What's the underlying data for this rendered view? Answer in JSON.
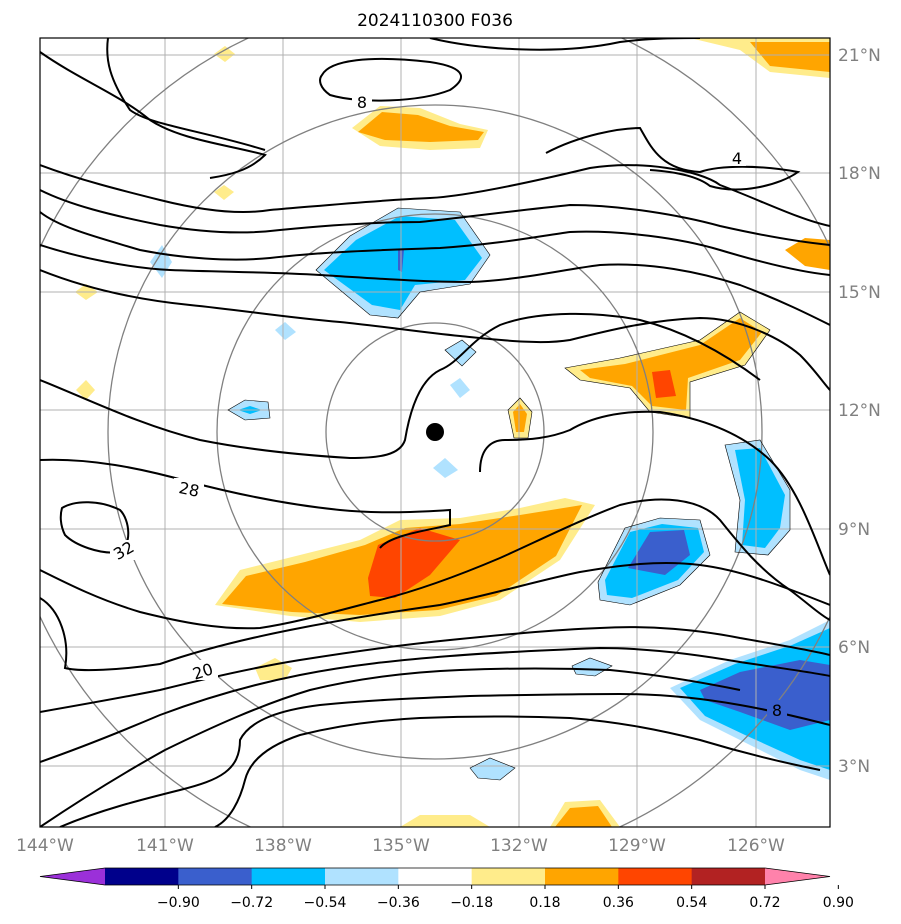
{
  "chart_data": {
    "type": "heatmap",
    "title": "2024110300 F036",
    "x_ticks": [
      "144°W",
      "141°W",
      "138°W",
      "135°W",
      "132°W",
      "129°W",
      "126°W"
    ],
    "x_tick_values": [
      -144,
      -141,
      -138,
      -135,
      -132,
      -129,
      -126
    ],
    "y_ticks": [
      "21°N",
      "18°N",
      "15°N",
      "12°N",
      "9°N",
      "6°N",
      "3°N"
    ],
    "y_tick_values": [
      21,
      18,
      15,
      12,
      9,
      6,
      3
    ],
    "xlim": [
      -144,
      -124
    ],
    "ylim": [
      1.5,
      21.5
    ],
    "grid": true,
    "center_marker": {
      "lon": -134.3,
      "lat": 11.5
    },
    "contour_labels": [
      "8",
      "4",
      "28",
      "32",
      "20",
      "8"
    ],
    "colorbar": {
      "orientation": "horizontal",
      "tick_labels": [
        "−0.90",
        "−0.72",
        "−0.54",
        "−0.36",
        "−0.18",
        "0.18",
        "0.36",
        "0.54",
        "0.72",
        "0.90"
      ],
      "levels": [
        -0.9,
        -0.72,
        -0.54,
        -0.36,
        -0.18,
        0.18,
        0.36,
        0.54,
        0.72,
        0.9
      ],
      "colors": [
        "#9b30d9",
        "#00008b",
        "#3a5fcd",
        "#00bfff",
        "#b0e2ff",
        "#ffffff",
        "#ffec8b",
        "#ffa500",
        "#ff4500",
        "#b22222",
        "#ff82ab"
      ]
    }
  }
}
